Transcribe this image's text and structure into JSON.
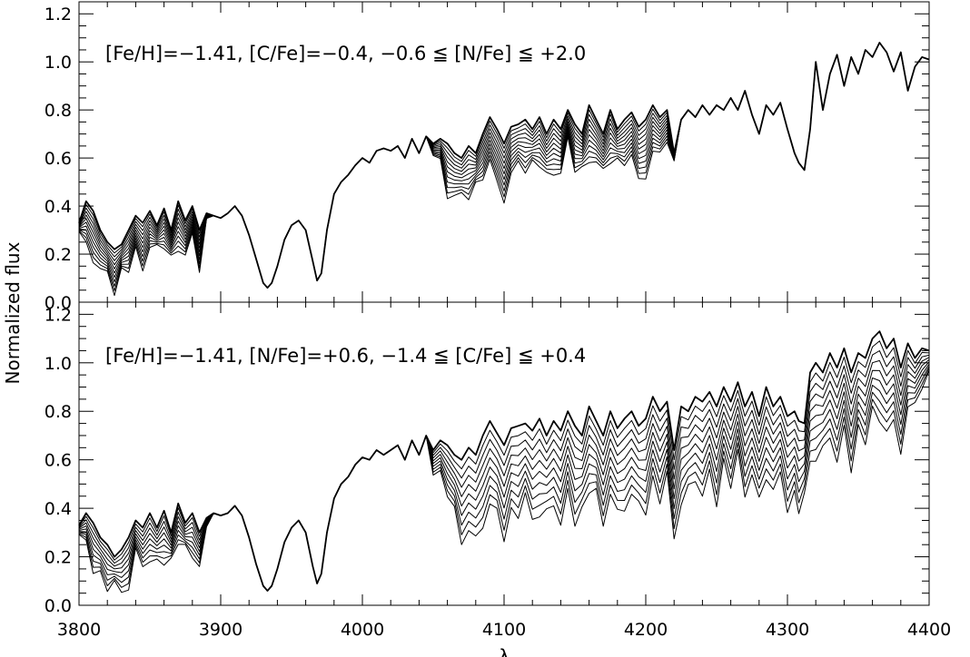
{
  "chart_data": [
    {
      "type": "line",
      "panel": "top",
      "annotation": "[Fe/H]=−1.41, [C/Fe]=−0.4, −0.6 ≦ [N/Fe] ≦ +2.0",
      "ylabel": "Normalized flux",
      "xlim": [
        3800,
        4400
      ],
      "ylim": [
        0.0,
        1.25
      ],
      "xticks": [
        "3800",
        "3900",
        "4000",
        "4100",
        "4200",
        "4300",
        "4400"
      ],
      "yticks": [
        "0.0",
        "0.2",
        "0.4",
        "0.6",
        "0.8",
        "1.0",
        "1.2"
      ],
      "grid": false,
      "n_series": 12,
      "varying_bands": [
        {
          "xrange": [
            3800,
            3890
          ],
          "flux_min": 0.12,
          "flux_max": 0.44
        },
        {
          "xrange": [
            4050,
            4220
          ],
          "flux_min": 0.43,
          "flux_max": 0.82
        }
      ],
      "x": [
        3800,
        3805,
        3810,
        3815,
        3820,
        3825,
        3830,
        3835,
        3840,
        3845,
        3850,
        3855,
        3860,
        3865,
        3870,
        3875,
        3880,
        3885,
        3890,
        3895,
        3900,
        3905,
        3910,
        3915,
        3920,
        3925,
        3930,
        3933,
        3936,
        3940,
        3945,
        3950,
        3955,
        3960,
        3965,
        3968,
        3971,
        3975,
        3980,
        3985,
        3990,
        3995,
        4000,
        4005,
        4010,
        4015,
        4020,
        4025,
        4030,
        4035,
        4040,
        4045,
        4050,
        4055,
        4060,
        4065,
        4070,
        4075,
        4080,
        4085,
        4090,
        4095,
        4100,
        4105,
        4110,
        4115,
        4120,
        4125,
        4130,
        4135,
        4140,
        4145,
        4150,
        4155,
        4160,
        4165,
        4170,
        4175,
        4180,
        4185,
        4190,
        4195,
        4200,
        4205,
        4210,
        4215,
        4220,
        4225,
        4230,
        4235,
        4240,
        4245,
        4250,
        4255,
        4260,
        4265,
        4270,
        4275,
        4280,
        4285,
        4290,
        4295,
        4300,
        4305,
        4308,
        4312,
        4316,
        4320,
        4325,
        4330,
        4335,
        4340,
        4345,
        4350,
        4355,
        4360,
        4365,
        4370,
        4375,
        4380,
        4385,
        4390,
        4395,
        4400
      ],
      "series": [
        {
          "name": "",
          "values": [
            0.33,
            0.42,
            0.38,
            0.3,
            0.25,
            0.22,
            0.24,
            0.3,
            0.36,
            0.33,
            0.38,
            0.32,
            0.39,
            0.3,
            0.42,
            0.34,
            0.4,
            0.3,
            0.37,
            0.36,
            0.35,
            0.37,
            0.4,
            0.36,
            0.28,
            0.18,
            0.08,
            0.06,
            0.08,
            0.15,
            0.26,
            0.32,
            0.34,
            0.3,
            0.17,
            0.09,
            0.12,
            0.3,
            0.45,
            0.5,
            0.53,
            0.57,
            0.6,
            0.58,
            0.63,
            0.64,
            0.63,
            0.65,
            0.6,
            0.68,
            0.62,
            0.69,
            0.66,
            0.68,
            0.66,
            0.62,
            0.6,
            0.65,
            0.62,
            0.7,
            0.77,
            0.72,
            0.66,
            0.73,
            0.74,
            0.76,
            0.72,
            0.77,
            0.7,
            0.76,
            0.72,
            0.8,
            0.74,
            0.7,
            0.82,
            0.76,
            0.7,
            0.8,
            0.72,
            0.76,
            0.79,
            0.73,
            0.76,
            0.82,
            0.77,
            0.8,
            0.62,
            0.76,
            0.8,
            0.77,
            0.82,
            0.78,
            0.82,
            0.8,
            0.85,
            0.8,
            0.88,
            0.78,
            0.7,
            0.82,
            0.78,
            0.83,
            0.72,
            0.62,
            0.58,
            0.55,
            0.72,
            1.0,
            0.8,
            0.95,
            1.03,
            0.9,
            1.02,
            0.95,
            1.05,
            1.02,
            1.08,
            1.04,
            0.96,
            1.04,
            0.88,
            0.98,
            1.02,
            1.01
          ]
        }
      ]
    },
    {
      "type": "line",
      "panel": "bottom",
      "annotation": "[Fe/H]=−1.41, [N/Fe]=+0.6, −1.4 ≦ [C/Fe] ≦ +0.4",
      "xlabel": "λ",
      "xlim": [
        3800,
        4400
      ],
      "ylim": [
        0.0,
        1.25
      ],
      "xticks": [
        "3800",
        "3900",
        "4000",
        "4100",
        "4200",
        "4300",
        "4400"
      ],
      "yticks": [
        "0.0",
        "0.2",
        "0.4",
        "0.6",
        "0.8",
        "1.0",
        "1.2"
      ],
      "grid": false,
      "n_series": 10,
      "varying_bands": [
        {
          "xrange": [
            3800,
            3890
          ],
          "flux_min": 0.1,
          "flux_max": 0.44
        },
        {
          "xrange": [
            4050,
            4400
          ],
          "flux_min": 0.37,
          "flux_max": 1.13
        }
      ],
      "x": [
        3800,
        3805,
        3810,
        3815,
        3820,
        3825,
        3830,
        3835,
        3840,
        3845,
        3850,
        3855,
        3860,
        3865,
        3870,
        3875,
        3880,
        3885,
        3890,
        3895,
        3900,
        3905,
        3910,
        3915,
        3920,
        3925,
        3930,
        3933,
        3936,
        3940,
        3945,
        3950,
        3955,
        3960,
        3965,
        3968,
        3971,
        3975,
        3980,
        3985,
        3990,
        3995,
        4000,
        4005,
        4010,
        4015,
        4020,
        4025,
        4030,
        4035,
        4040,
        4045,
        4050,
        4055,
        4060,
        4065,
        4070,
        4075,
        4080,
        4085,
        4090,
        4095,
        4100,
        4105,
        4110,
        4115,
        4120,
        4125,
        4130,
        4135,
        4140,
        4145,
        4150,
        4155,
        4160,
        4165,
        4170,
        4175,
        4180,
        4185,
        4190,
        4195,
        4200,
        4205,
        4210,
        4215,
        4220,
        4225,
        4230,
        4235,
        4240,
        4245,
        4250,
        4255,
        4260,
        4265,
        4270,
        4275,
        4280,
        4285,
        4290,
        4295,
        4300,
        4305,
        4308,
        4312,
        4316,
        4320,
        4325,
        4330,
        4335,
        4340,
        4345,
        4350,
        4355,
        4360,
        4365,
        4370,
        4375,
        4380,
        4385,
        4390,
        4395,
        4400
      ],
      "series": [
        {
          "name": "",
          "values": [
            0.33,
            0.38,
            0.34,
            0.28,
            0.25,
            0.2,
            0.23,
            0.28,
            0.35,
            0.32,
            0.38,
            0.32,
            0.39,
            0.3,
            0.42,
            0.34,
            0.38,
            0.3,
            0.36,
            0.38,
            0.37,
            0.38,
            0.41,
            0.37,
            0.28,
            0.17,
            0.08,
            0.06,
            0.08,
            0.15,
            0.26,
            0.32,
            0.35,
            0.3,
            0.16,
            0.09,
            0.13,
            0.3,
            0.44,
            0.5,
            0.53,
            0.58,
            0.61,
            0.6,
            0.64,
            0.62,
            0.64,
            0.66,
            0.6,
            0.68,
            0.62,
            0.7,
            0.64,
            0.68,
            0.66,
            0.62,
            0.6,
            0.65,
            0.62,
            0.7,
            0.76,
            0.71,
            0.66,
            0.73,
            0.74,
            0.75,
            0.72,
            0.77,
            0.7,
            0.76,
            0.72,
            0.8,
            0.74,
            0.7,
            0.82,
            0.76,
            0.7,
            0.8,
            0.73,
            0.77,
            0.8,
            0.74,
            0.77,
            0.86,
            0.8,
            0.84,
            0.64,
            0.82,
            0.8,
            0.86,
            0.84,
            0.88,
            0.82,
            0.9,
            0.84,
            0.92,
            0.82,
            0.88,
            0.78,
            0.9,
            0.82,
            0.86,
            0.78,
            0.8,
            0.76,
            0.75,
            0.96,
            1.0,
            0.96,
            1.04,
            0.98,
            1.06,
            0.96,
            1.04,
            1.02,
            1.1,
            1.13,
            1.06,
            1.1,
            0.98,
            1.08,
            1.02,
            1.06,
            1.05
          ]
        }
      ]
    }
  ]
}
